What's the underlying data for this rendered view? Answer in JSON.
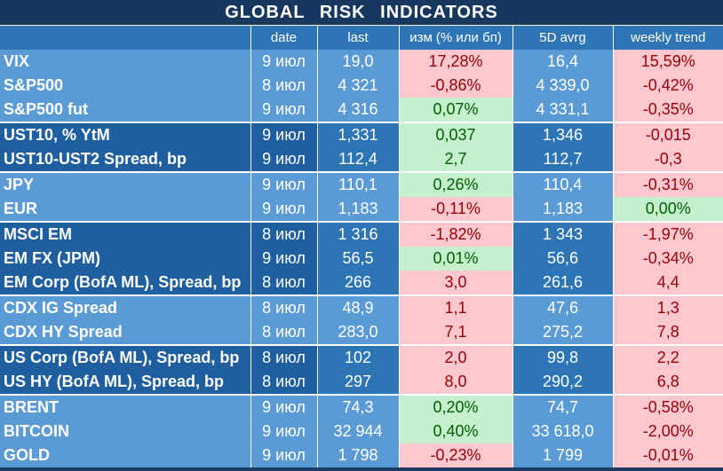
{
  "title": "GLOBAL   RISK   INDICATORS",
  "headers": {
    "name": "",
    "date": "date",
    "last": "last",
    "chg": "изм (% или бп)",
    "avg": "5D avrg",
    "trend": "weekly trend"
  },
  "rows": [
    {
      "name": "VIX",
      "date": "9 июл",
      "last": "19,0",
      "chg": "17,28%",
      "chg_tone": "neg",
      "avg": "16,4",
      "trend": "15,59%",
      "trend_tone": "neg",
      "band": "light",
      "grp": false
    },
    {
      "name": "S&P500",
      "date": "8 июл",
      "last": "4 321",
      "chg": "-0,86%",
      "chg_tone": "neg",
      "avg": "4 339,0",
      "trend": "-0,42%",
      "trend_tone": "neg",
      "band": "light",
      "grp": false
    },
    {
      "name": "S&P500 fut",
      "date": "9 июл",
      "last": "4 316",
      "chg": "0,07%",
      "chg_tone": "pos",
      "avg": "4 331,1",
      "trend": "-0,35%",
      "trend_tone": "neg",
      "band": "light",
      "grp": false
    },
    {
      "name": "UST10, % YtM",
      "date": "9 июл",
      "last": "1,331",
      "chg": "0,037",
      "chg_tone": "pos",
      "avg": "1,346",
      "trend": "-0,015",
      "trend_tone": "neg",
      "band": "dark",
      "grp": true
    },
    {
      "name": "UST10-UST2 Spread, bp",
      "date": "9 июл",
      "last": "112,4",
      "chg": "2,7",
      "chg_tone": "pos",
      "avg": "112,7",
      "trend": "-0,3",
      "trend_tone": "neg",
      "band": "dark",
      "grp": false
    },
    {
      "name": "JPY",
      "date": "9 июл",
      "last": "110,1",
      "chg": "0,26%",
      "chg_tone": "pos",
      "avg": "110,4",
      "trend": "-0,31%",
      "trend_tone": "neg",
      "band": "light",
      "grp": true
    },
    {
      "name": "EUR",
      "date": "9 июл",
      "last": "1,183",
      "chg": "-0,11%",
      "chg_tone": "neg",
      "avg": "1,183",
      "trend": "0,00%",
      "trend_tone": "pos",
      "band": "light",
      "grp": false
    },
    {
      "name": "MSCI EM",
      "date": "8 июл",
      "last": "1 316",
      "chg": "-1,82%",
      "chg_tone": "neg",
      "avg": "1 343",
      "trend": "-1,97%",
      "trend_tone": "neg",
      "band": "dark",
      "grp": true
    },
    {
      "name": "EM FX (JPM)",
      "date": "9 июл",
      "last": "56,5",
      "chg": "0,01%",
      "chg_tone": "pos",
      "avg": "56,6",
      "trend": "-0,34%",
      "trend_tone": "neg",
      "band": "dark",
      "grp": false
    },
    {
      "name": "EM Corp (BofA ML), Spread, bp",
      "date": "8 июл",
      "last": "266",
      "chg": "3,0",
      "chg_tone": "neg",
      "avg": "261,6",
      "trend": "4,4",
      "trend_tone": "neg",
      "band": "dark",
      "grp": false
    },
    {
      "name": "CDX IG Spread",
      "date": "8 июл",
      "last": "48,9",
      "chg": "1,1",
      "chg_tone": "neg",
      "avg": "47,6",
      "trend": "1,3",
      "trend_tone": "neg",
      "band": "light",
      "grp": true
    },
    {
      "name": "CDX HY Spread",
      "date": "8 июл",
      "last": "283,0",
      "chg": "7,1",
      "chg_tone": "neg",
      "avg": "275,2",
      "trend": "7,8",
      "trend_tone": "neg",
      "band": "light",
      "grp": false
    },
    {
      "name": "US Corp (BofA ML), Spread, bp",
      "date": "8 июл",
      "last": "102",
      "chg": "2,0",
      "chg_tone": "neg",
      "avg": "99,8",
      "trend": "2,2",
      "trend_tone": "neg",
      "band": "dark",
      "grp": true
    },
    {
      "name": "US HY (BofA ML), Spread, bp",
      "date": "8 июл",
      "last": "297",
      "chg": "8,0",
      "chg_tone": "neg",
      "avg": "290,2",
      "trend": "6,8",
      "trend_tone": "neg",
      "band": "dark",
      "grp": false
    },
    {
      "name": "BRENT",
      "date": "9 июл",
      "last": "74,3",
      "chg": "0,20%",
      "chg_tone": "pos",
      "avg": "74,7",
      "trend": "-0,58%",
      "trend_tone": "neg",
      "band": "light",
      "grp": true
    },
    {
      "name": "BITCOIN",
      "date": "9 июл",
      "last": "32 944",
      "chg": "0,40%",
      "chg_tone": "pos",
      "avg": "33 618,0",
      "trend": "-2,00%",
      "trend_tone": "neg",
      "band": "light",
      "grp": false
    },
    {
      "name": "GOLD",
      "date": "9 июл",
      "last": "1 798",
      "chg": "-0,23%",
      "chg_tone": "neg",
      "avg": "1 799",
      "trend": "-0,01%",
      "trend_tone": "neg",
      "band": "light",
      "grp": false
    }
  ]
}
